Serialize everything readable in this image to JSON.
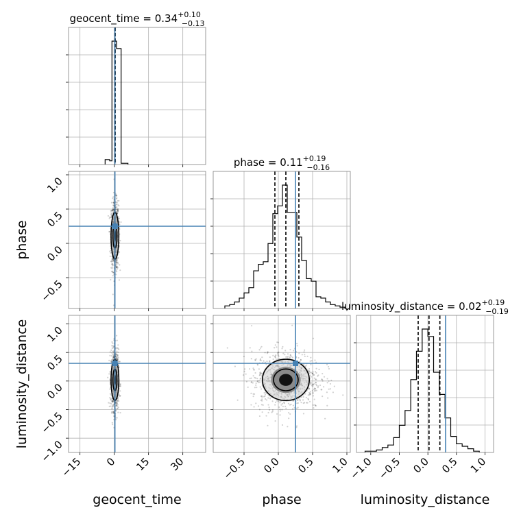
{
  "chart_data": {
    "type": "corner",
    "parameters": [
      "geocent_time",
      "phase",
      "luminosity_distance"
    ],
    "truth": {
      "geocent_time": 0.3,
      "phase": 0.25,
      "luminosity_distance": 0.31,
      "color": "#4682b4"
    },
    "titles": [
      {
        "param": "geocent_time",
        "main": "geocent_time = 0.34",
        "sup": "+0.10",
        "sub": "−0.13"
      },
      {
        "param": "phase",
        "main": "phase = 0.11",
        "sup": "+0.19",
        "sub": "−0.16"
      },
      {
        "param": "luminosity_distance",
        "main": "luminosity_distance = 0.02",
        "sup": "+0.19",
        "sub": "−0.19"
      }
    ],
    "axes": {
      "geocent_time": {
        "range": [
          -20,
          40
        ],
        "ticks": [
          -15,
          0,
          15,
          30
        ],
        "tick_labels": [
          "−15",
          "0",
          "15",
          "30"
        ]
      },
      "phase": {
        "range": [
          -0.95,
          1.05
        ],
        "ticks": [
          -0.5,
          0.0,
          0.5,
          1.0
        ],
        "tick_labels": [
          "−0.5",
          "0.0",
          "0.5",
          "1.0"
        ]
      },
      "luminosity_distance": {
        "range": [
          -1.25,
          1.15
        ],
        "ticks": [
          -1.0,
          -0.5,
          0.0,
          0.5,
          1.0
        ],
        "tick_labels": [
          "−1.0",
          "−0.5",
          "0.0",
          "0.5",
          "1.0"
        ]
      }
    },
    "x_axis_labels": [
      "geocent_time",
      "phase",
      "luminosity_distance"
    ],
    "y_axis_labels": [
      "phase",
      "luminosity_distance"
    ],
    "histograms": {
      "geocent_time": {
        "bin_edges": [
          -4,
          -2,
          -1,
          1,
          3,
          6
        ],
        "heights": [
          0.04,
          0.03,
          1.0,
          0.94,
          0.01
        ],
        "quantiles": [
          0.21,
          0.34,
          0.44
        ]
      },
      "phase": {
        "bin_edges": [
          -0.78,
          -0.71,
          -0.64,
          -0.57,
          -0.5,
          -0.43,
          -0.36,
          -0.29,
          -0.22,
          -0.15,
          -0.08,
          -0.01,
          0.06,
          0.13,
          0.2,
          0.27,
          0.34,
          0.41,
          0.48,
          0.55,
          0.62,
          0.69,
          0.76,
          0.83,
          0.9,
          0.97
        ],
        "heights": [
          0.02,
          0.03,
          0.05,
          0.08,
          0.12,
          0.16,
          0.29,
          0.34,
          0.36,
          0.5,
          0.73,
          0.79,
          0.95,
          0.74,
          0.74,
          0.55,
          0.37,
          0.23,
          0.21,
          0.09,
          0.08,
          0.05,
          0.03,
          0.02,
          0.01
        ],
        "quantiles": [
          -0.05,
          0.11,
          0.3
        ]
      },
      "luminosity_distance": {
        "bin_edges": [
          -1.1,
          -1.0,
          -0.9,
          -0.8,
          -0.7,
          -0.6,
          -0.5,
          -0.4,
          -0.3,
          -0.2,
          -0.1,
          0.0,
          0.1,
          0.2,
          0.3,
          0.4,
          0.5,
          0.6,
          0.7,
          0.8,
          0.9
        ],
        "heights": [
          0.01,
          0.01,
          0.02,
          0.04,
          0.06,
          0.12,
          0.22,
          0.34,
          0.59,
          0.82,
          1.0,
          0.94,
          0.65,
          0.47,
          0.28,
          0.13,
          0.07,
          0.05,
          0.03,
          0.01
        ],
        "quantiles": [
          -0.17,
          0.02,
          0.21
        ]
      }
    },
    "scatter_2d": [
      {
        "x": "geocent_time",
        "y": "phase",
        "x_center": 0.3,
        "x_sigma": 0.6,
        "y_center": 0.11,
        "y_sigma": 0.18
      },
      {
        "x": "geocent_time",
        "y": "luminosity_distance",
        "x_center": 0.3,
        "x_sigma": 0.6,
        "y_center": 0.02,
        "y_sigma": 0.19
      },
      {
        "x": "phase",
        "y": "luminosity_distance",
        "x_center": 0.11,
        "x_sigma": 0.18,
        "y_center": 0.02,
        "y_sigma": 0.19
      }
    ],
    "grid": true
  }
}
